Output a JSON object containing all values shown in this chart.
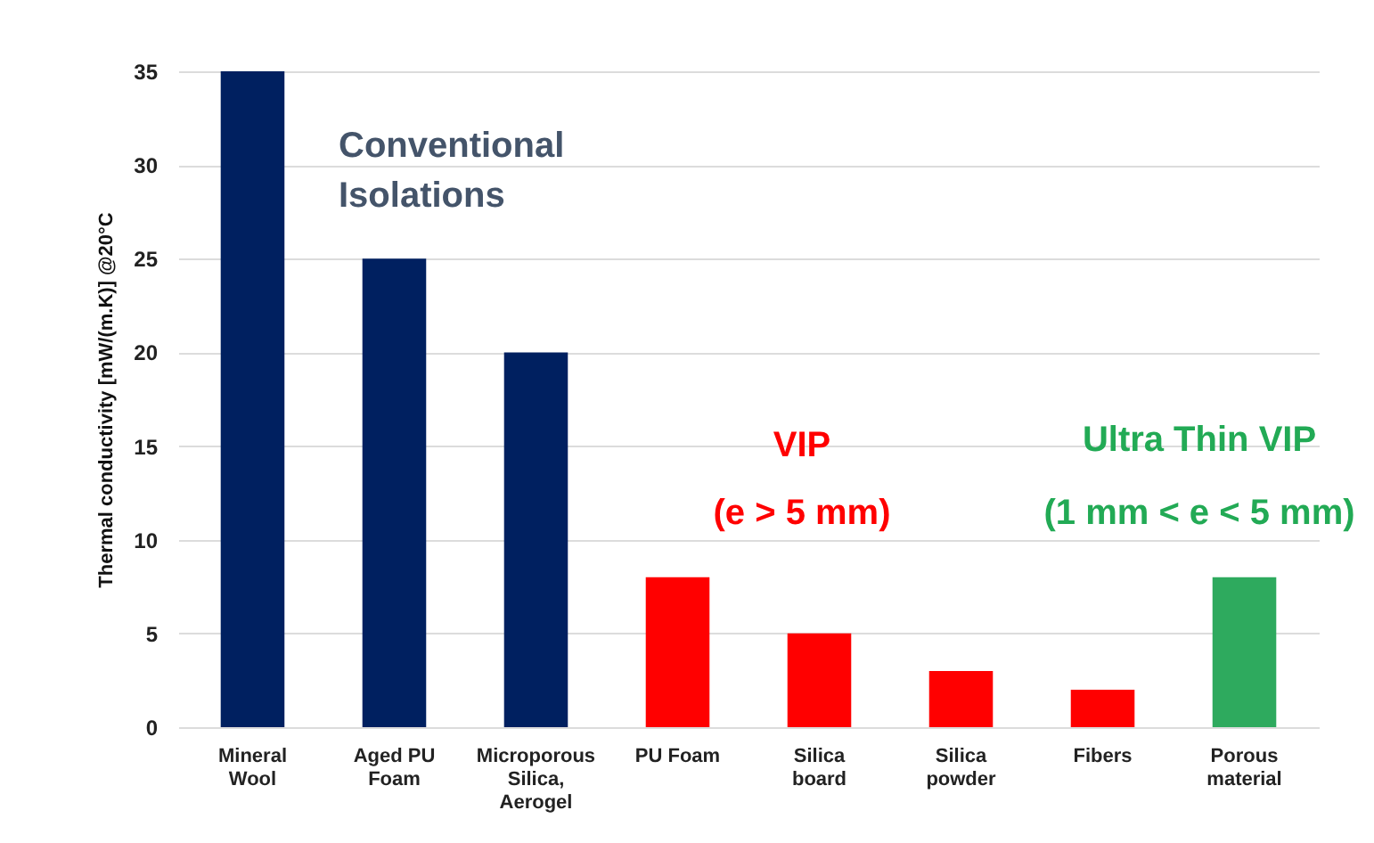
{
  "chart_data": {
    "type": "bar",
    "ylabel": "Thermal conductivity [mW/(m.K)] @20°C",
    "categories": [
      "Mineral Wool",
      "Aged PU Foam",
      "Microporous Silica, Aerogel",
      "PU Foam",
      "Silica board",
      "Silica powder",
      "Fibers",
      "Porous material"
    ],
    "values": [
      35,
      25,
      20,
      8,
      5,
      3,
      2,
      8
    ],
    "colors": [
      "#002060",
      "#002060",
      "#002060",
      "#ff0000",
      "#ff0000",
      "#ff0000",
      "#ff0000",
      "#2eaa5e"
    ],
    "ylim": [
      0,
      35
    ],
    "yticks": [
      0,
      5,
      10,
      15,
      20,
      25,
      30,
      35
    ],
    "grid": "y",
    "annotations": [
      "Conventional Isolations",
      "VIP",
      "(e > 5 mm)",
      "Ultra Thin VIP",
      "(1 mm < e < 5 mm)"
    ]
  }
}
